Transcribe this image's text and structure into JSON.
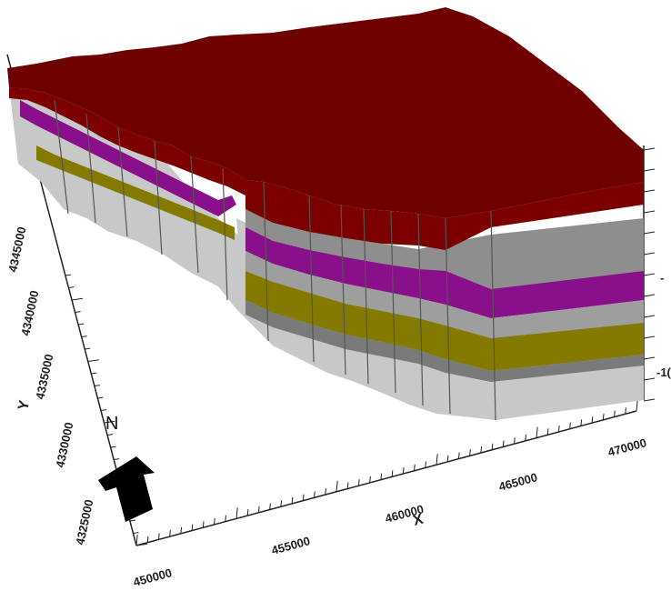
{
  "axes": {
    "x": {
      "name": "X",
      "ticks": [
        "450000",
        "455000",
        "460000",
        "465000",
        "470000"
      ]
    },
    "y": {
      "name": "Y",
      "ticks": [
        "4325000",
        "4330000",
        "4335000",
        "4340000",
        "4345000"
      ]
    },
    "z": {
      "visible_partial_labels": [
        "-",
        "-1("
      ]
    }
  },
  "north_arrow": {
    "label": "N"
  },
  "layers": [
    {
      "key": "top",
      "color": "#7c0000"
    },
    {
      "key": "upper-gray",
      "color": "#8e8e8e"
    },
    {
      "key": "magenta",
      "color": "#8a0f8a"
    },
    {
      "key": "mid-gray",
      "color": "#9e9e9e"
    },
    {
      "key": "olive",
      "color": "#847a00"
    },
    {
      "key": "dark-gray",
      "color": "#7a7a7a"
    },
    {
      "key": "light-gray",
      "color": "#c8c8c8"
    }
  ]
}
